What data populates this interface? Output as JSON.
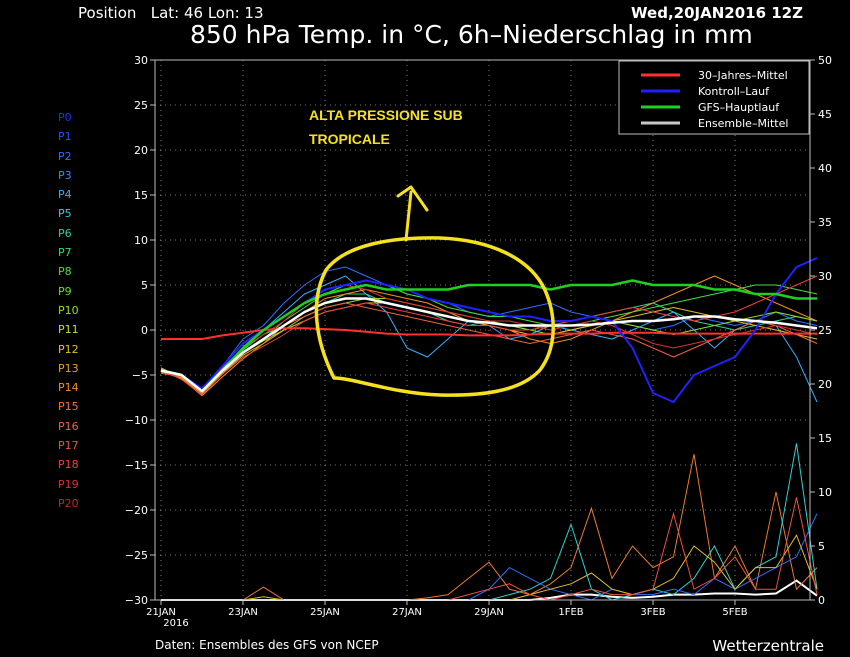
{
  "header": {
    "position_label": "Position   Lat: 46 Lon: 13",
    "run": "Wed,20JAN2016 12Z",
    "title": "850 hPa Temp. in °C, 6h–Niederschlag in mm"
  },
  "members": [
    {
      "label": "P0",
      "color": "#2030ff"
    },
    {
      "label": "P1",
      "color": "#2050ff"
    },
    {
      "label": "P2",
      "color": "#2a70ff"
    },
    {
      "label": "P3",
      "color": "#3090ff"
    },
    {
      "label": "P4",
      "color": "#30b0ff"
    },
    {
      "label": "P5",
      "color": "#30d0d0"
    },
    {
      "label": "P6",
      "color": "#30d090"
    },
    {
      "label": "P7",
      "color": "#30e060"
    },
    {
      "label": "P8",
      "color": "#40e040"
    },
    {
      "label": "P9",
      "color": "#60e020"
    },
    {
      "label": "P10",
      "color": "#90e020"
    },
    {
      "label": "P11",
      "color": "#c0e020"
    },
    {
      "label": "P12",
      "color": "#e0c020"
    },
    {
      "label": "P13",
      "color": "#f0a020"
    },
    {
      "label": "P14",
      "color": "#f09020"
    },
    {
      "label": "P15",
      "color": "#f07830"
    },
    {
      "label": "P16",
      "color": "#f06040"
    },
    {
      "label": "P17",
      "color": "#f05040"
    },
    {
      "label": "P18",
      "color": "#f04040"
    },
    {
      "label": "P19",
      "color": "#e03030"
    },
    {
      "label": "P20",
      "color": "#d02020"
    }
  ],
  "annotation": {
    "line1": "ALTA PRESSIONE SUB",
    "line2": "TROPICALE",
    "color": "#f5e11e"
  },
  "footer": {
    "source": "Daten: Ensembles des GFS von NCEP",
    "brand": "Wetterzentrale"
  },
  "chart_data": {
    "type": "line",
    "x_tick_labels": [
      "21JAN",
      "23JAN",
      "25JAN",
      "27JAN",
      "29JAN",
      "1FEB",
      "3FEB",
      "5FEB"
    ],
    "x_tick_sublabel": "2016",
    "y_left": {
      "ticks": [
        30,
        25,
        20,
        15,
        10,
        5,
        0,
        -5,
        -10,
        -15,
        -20,
        -25,
        -30
      ],
      "lim": [
        -30,
        30
      ]
    },
    "y_right": {
      "ticks": [
        50,
        45,
        40,
        35,
        30,
        25,
        20,
        15,
        10,
        5,
        0
      ],
      "lim": [
        0,
        50
      ]
    },
    "grid": true,
    "legend_position": "top-right",
    "legend": [
      {
        "name": "30–Jahres–Mittel",
        "color": "#ff3030"
      },
      {
        "name": "Kontroll–Lauf",
        "color": "#2020ff"
      },
      {
        "name": "GFS–Hauptlauf",
        "color": "#20d020"
      },
      {
        "name": "Ensemble–Mittel",
        "color": "#c8c8c8"
      }
    ],
    "days": [
      0,
      0.5,
      1,
      1.5,
      2,
      2.5,
      3,
      3.5,
      4,
      4.5,
      5,
      5.5,
      6,
      6.5,
      7,
      7.5,
      8,
      8.5,
      9,
      9.5,
      10,
      10.5,
      11,
      11.5,
      12,
      12.5,
      13,
      13.5,
      14,
      14.5,
      15,
      15.5,
      16
    ],
    "series": [
      {
        "name": "30–Jahres–Mittel",
        "color": "#ff3030",
        "width": 2,
        "values": [
          -1,
          -1,
          -1,
          -0.6,
          -0.3,
          0,
          0.2,
          0.2,
          0.1,
          0,
          -0.2,
          -0.4,
          -0.5,
          -0.5,
          -0.5,
          -0.6,
          -0.6,
          -0.6,
          -0.5,
          -0.4,
          -0.4,
          -0.4,
          -0.3,
          -0.3,
          -0.3,
          -0.4,
          -0.4,
          -0.4,
          -0.4,
          -0.4,
          -0.4,
          -0.4,
          -0.4
        ]
      },
      {
        "name": "Kontroll–Lauf",
        "color": "#2020ff",
        "width": 2,
        "values": [
          -4.5,
          -5,
          -6.5,
          -4,
          -1.5,
          0,
          1.5,
          3,
          4.5,
          5,
          5.5,
          5,
          4.5,
          3.5,
          3,
          2.5,
          2,
          1.5,
          1.5,
          1,
          1,
          1.5,
          1,
          -2,
          -7,
          -8,
          -5,
          -4,
          -3,
          0,
          4,
          7,
          8
        ]
      },
      {
        "name": "GFS–Hauptlauf",
        "color": "#20d020",
        "width": 2.5,
        "values": [
          -4.5,
          -5,
          -6.8,
          -4.5,
          -2,
          0,
          1.5,
          3,
          4,
          4.5,
          5,
          4.5,
          4.5,
          4.5,
          4.5,
          5,
          5,
          5,
          5,
          4.5,
          5,
          5,
          5,
          5.5,
          5,
          5,
          5,
          4.5,
          4.5,
          4,
          4,
          3.5,
          3.5
        ]
      },
      {
        "name": "Ensemble–Mittel",
        "color": "#ffffff",
        "width": 2.5,
        "values": [
          -4.5,
          -5,
          -6.8,
          -4.5,
          -2.5,
          -1,
          0.5,
          2,
          3,
          3.5,
          3.5,
          3,
          2.5,
          2,
          1.5,
          1,
          0.8,
          0.5,
          0.5,
          0.5,
          0.5,
          0.6,
          0.8,
          1,
          1,
          1.2,
          1.5,
          1.5,
          1.2,
          1,
          0.8,
          0.5,
          0.2
        ]
      },
      {
        "name": "P2",
        "color": "#2a70ff",
        "width": 1,
        "values": [
          -4.3,
          -5.2,
          -7,
          -4,
          -1,
          0.5,
          3,
          5,
          6.5,
          7,
          6,
          5,
          4,
          3.5,
          3,
          2,
          1.5,
          2,
          2.5,
          3,
          2,
          1.5,
          1,
          0.5,
          0,
          0.5,
          1.5,
          1,
          0.5,
          1,
          2,
          1,
          0.5
        ]
      },
      {
        "name": "P4",
        "color": "#30b0ff",
        "width": 1,
        "values": [
          -4.6,
          -5.3,
          -6.6,
          -4.2,
          -2,
          0,
          2,
          4,
          5,
          6,
          4,
          2,
          -2,
          -3,
          -1,
          1,
          0.5,
          -1,
          -0.5,
          0.5,
          0,
          -0.5,
          -1,
          0,
          1,
          2,
          0,
          -2,
          0,
          1,
          0.5,
          -3,
          -8
        ]
      },
      {
        "name": "P6",
        "color": "#30d090",
        "width": 1,
        "values": [
          -4.4,
          -4.9,
          -6.9,
          -4.6,
          -2.2,
          -0.5,
          0.5,
          2,
          3,
          4,
          4,
          3,
          2.5,
          2,
          1,
          0.5,
          1,
          0.5,
          0,
          0.5,
          1,
          1.5,
          2,
          2.5,
          3,
          2,
          1,
          0.5,
          0,
          0.5,
          1,
          1.5,
          1
        ]
      },
      {
        "name": "P8",
        "color": "#40e040",
        "width": 1,
        "values": [
          -4.5,
          -5.1,
          -6.7,
          -4.4,
          -2.4,
          -1,
          1,
          2.5,
          4,
          5,
          5.5,
          5,
          4,
          3.5,
          2.5,
          2,
          1.5,
          1.5,
          1,
          0.5,
          0.5,
          1,
          1.5,
          2,
          2.5,
          3,
          3.5,
          4,
          4.5,
          5,
          5,
          4.5,
          4
        ]
      },
      {
        "name": "P10",
        "color": "#90e020",
        "width": 1,
        "values": [
          -4.7,
          -5,
          -6.9,
          -4.7,
          -2.6,
          -1.2,
          0,
          1.5,
          2.5,
          3,
          3.5,
          3.5,
          3,
          2.5,
          2,
          1.5,
          1,
          0.5,
          0,
          -0.5,
          0,
          0.5,
          1,
          0.5,
          0,
          -0.5,
          0,
          0.5,
          1,
          1.5,
          2,
          1.5,
          1
        ]
      },
      {
        "name": "P12",
        "color": "#e0c020",
        "width": 1,
        "values": [
          -4.2,
          -5.3,
          -7.1,
          -4.8,
          -2.8,
          -1.5,
          0,
          1,
          2,
          2.5,
          3,
          3,
          2.5,
          2,
          1.5,
          1,
          0.5,
          0,
          -0.5,
          -0.5,
          0,
          0.5,
          1,
          1.5,
          2,
          2.5,
          2,
          1.5,
          1,
          0.5,
          0,
          -0.5,
          -1
        ]
      },
      {
        "name": "P14",
        "color": "#f09020",
        "width": 1,
        "values": [
          -4.6,
          -5.4,
          -7.3,
          -5.2,
          -3.2,
          -1.5,
          0.5,
          2,
          3.5,
          4,
          4.5,
          4,
          3.5,
          3,
          2,
          1,
          0.5,
          0,
          -1,
          -1.5,
          -1,
          0,
          1,
          2,
          3,
          4,
          5,
          6,
          5,
          4,
          3,
          2,
          1
        ]
      },
      {
        "name": "P16",
        "color": "#f06040",
        "width": 1,
        "values": [
          -4.8,
          -5.2,
          -7,
          -4.5,
          -2.5,
          -1,
          0.5,
          1.5,
          2.5,
          3,
          2.5,
          2,
          1.5,
          1,
          0.5,
          0,
          -0.5,
          -1,
          -1.5,
          -1,
          -0.5,
          0,
          -0.5,
          -1,
          -2,
          -3,
          -2,
          -1,
          0,
          1,
          0.5,
          -0.5,
          -1.5
        ]
      },
      {
        "name": "P18",
        "color": "#f04040",
        "width": 1,
        "values": [
          -4.4,
          -5.5,
          -7.2,
          -4.9,
          -3,
          -1.8,
          -0.5,
          1,
          2,
          2.5,
          3,
          2.5,
          2,
          1.5,
          1,
          0.5,
          0.5,
          0,
          0,
          0.5,
          1,
          1.5,
          2,
          2.5,
          2,
          1.5,
          1,
          1.5,
          2,
          3,
          4,
          5,
          6
        ]
      },
      {
        "name": "P19",
        "color": "#e03030",
        "width": 1,
        "values": [
          -4.5,
          -5,
          -6.8,
          -4.3,
          -2,
          -0.5,
          1,
          3,
          4.5,
          5,
          4.5,
          3.5,
          3,
          2.5,
          2,
          1.5,
          1,
          1,
          0.5,
          0,
          0.5,
          1,
          0.5,
          -0.5,
          -1.5,
          -2,
          -1.5,
          -1,
          -0.5,
          0,
          0.5,
          0,
          -0.5
        ]
      }
    ],
    "precip_series": [
      {
        "name": "Ensemble–Mittel",
        "color": "#ffffff",
        "width": 2,
        "values": [
          0,
          0,
          0,
          0,
          0,
          0,
          0,
          0,
          0,
          0,
          0,
          0,
          0,
          0,
          0,
          0,
          0,
          0,
          0,
          0.2,
          0.5,
          0.5,
          0.3,
          0.2,
          0.3,
          0.5,
          0.5,
          0.6,
          0.6,
          0.5,
          0.6,
          1.8,
          0.4
        ]
      },
      {
        "name": "P15",
        "color": "#f07830",
        "width": 1,
        "values": [
          0,
          0,
          0,
          0,
          0,
          1.2,
          0,
          0,
          0,
          0,
          0,
          0,
          0,
          0.2,
          0.5,
          2,
          3.5,
          1,
          0.5,
          1.5,
          3,
          8.5,
          2,
          5,
          3,
          4,
          13.5,
          2,
          5,
          1,
          10,
          1,
          3
        ]
      },
      {
        "name": "P5",
        "color": "#30d0d0",
        "width": 1,
        "values": [
          0,
          0,
          0,
          0,
          0,
          0,
          0,
          0,
          0,
          0,
          0,
          0,
          0,
          0,
          0,
          0,
          0,
          0.5,
          1,
          2,
          7,
          1,
          0,
          0.5,
          1,
          0.5,
          2,
          5,
          1,
          3,
          4,
          14.5,
          1
        ]
      },
      {
        "name": "P2",
        "color": "#2a70ff",
        "width": 1,
        "values": [
          0,
          0,
          0,
          0,
          0,
          0,
          0,
          0,
          0,
          0,
          0,
          0,
          0,
          0,
          0,
          0,
          1,
          3,
          2,
          1,
          0.5,
          0,
          1,
          0.5,
          0.5,
          1,
          0.5,
          2,
          1,
          2,
          3,
          4,
          8
        ]
      },
      {
        "name": "P12",
        "color": "#e0c020",
        "width": 1,
        "values": [
          0,
          0,
          0,
          0,
          0,
          0.3,
          0,
          0,
          0,
          0,
          0,
          0,
          0,
          0,
          0,
          0,
          0,
          0,
          0.5,
          1,
          1.5,
          2.5,
          1,
          0.5,
          1,
          2,
          5,
          3.5,
          1,
          3,
          3,
          6,
          1
        ]
      },
      {
        "name": "P17",
        "color": "#f05040",
        "width": 1,
        "values": [
          0,
          0,
          0,
          0,
          0,
          0,
          0,
          0,
          0,
          0,
          0,
          0,
          0,
          0,
          0,
          0.5,
          1,
          1.5,
          0.5,
          0,
          0.5,
          1,
          0.5,
          0.5,
          1,
          8,
          1,
          2,
          4,
          1,
          1,
          9.5,
          0.5
        ]
      }
    ]
  }
}
